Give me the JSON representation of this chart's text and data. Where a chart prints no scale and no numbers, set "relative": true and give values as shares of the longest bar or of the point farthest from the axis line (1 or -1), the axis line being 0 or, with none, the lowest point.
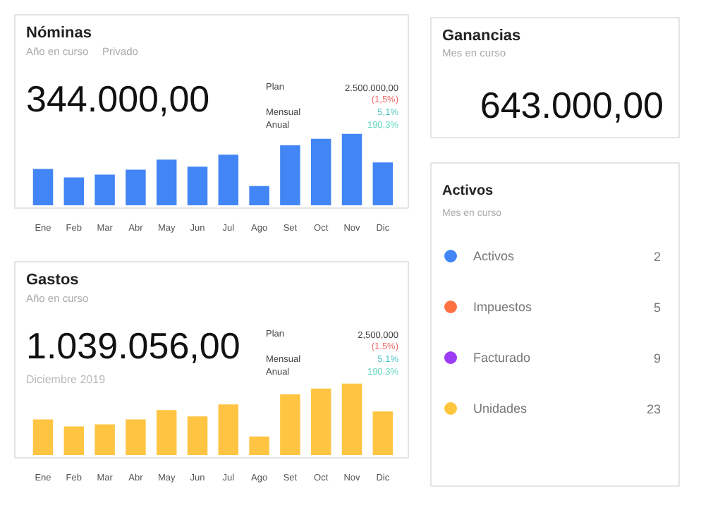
{
  "chart_data": [
    {
      "type": "bar",
      "title": "Nóminas",
      "subtitle": "Año en curso",
      "relative": true,
      "color": "#4285f4",
      "grid": false,
      "categories": [
        "Ene",
        "Feb",
        "Mar",
        "Abr",
        "May",
        "Jun",
        "Jul",
        "Ago",
        "Set",
        "Oct",
        "Nov",
        "Dic"
      ],
      "values": [
        0.51,
        0.39,
        0.43,
        0.5,
        0.64,
        0.54,
        0.71,
        0.27,
        0.84,
        0.93,
        1,
        0.6
      ],
      "annotations": [
        "344.000,00",
        "Plan",
        "2.500.000,00",
        "(1,5%)",
        "Mensual",
        "5,1%",
        "Anual",
        "190,3%",
        "Privado"
      ]
    },
    {
      "type": "other",
      "title": "Ganancias",
      "subtitle": "Mes en curso",
      "annotations": [
        "643.000,00"
      ]
    },
    {
      "type": "other",
      "title": "Activos",
      "subtitle": "Mes en curso",
      "categories": [
        "Activos",
        "Impuestos",
        "Facturado",
        "Unidades"
      ],
      "values": [
        2,
        5,
        9,
        23
      ],
      "colors": [
        "#4285f4",
        "#ff7043",
        "#9c3df5",
        "#ffc53d"
      ],
      "data_labels": true
    },
    {
      "type": "bar",
      "title": "Gastos",
      "subtitle": "Año en curso",
      "relative": true,
      "color": "#ffc542",
      "grid": false,
      "categories": [
        "Ene",
        "Feb",
        "Mar",
        "Abr",
        "May",
        "Jun",
        "Jul",
        "Ago",
        "Set",
        "Oct",
        "Nov",
        "Dic"
      ],
      "values": [
        0.5,
        0.4,
        0.43,
        0.5,
        0.63,
        0.54,
        0.71,
        0.26,
        0.85,
        0.93,
        1,
        0.61
      ],
      "annotations": [
        "1.039.056,00",
        "Plan",
        "2,500,000",
        "(1.5%)",
        "Mensual",
        "5.1%",
        "Anual",
        "190.3%",
        "Diciembre 2019"
      ]
    }
  ]
}
